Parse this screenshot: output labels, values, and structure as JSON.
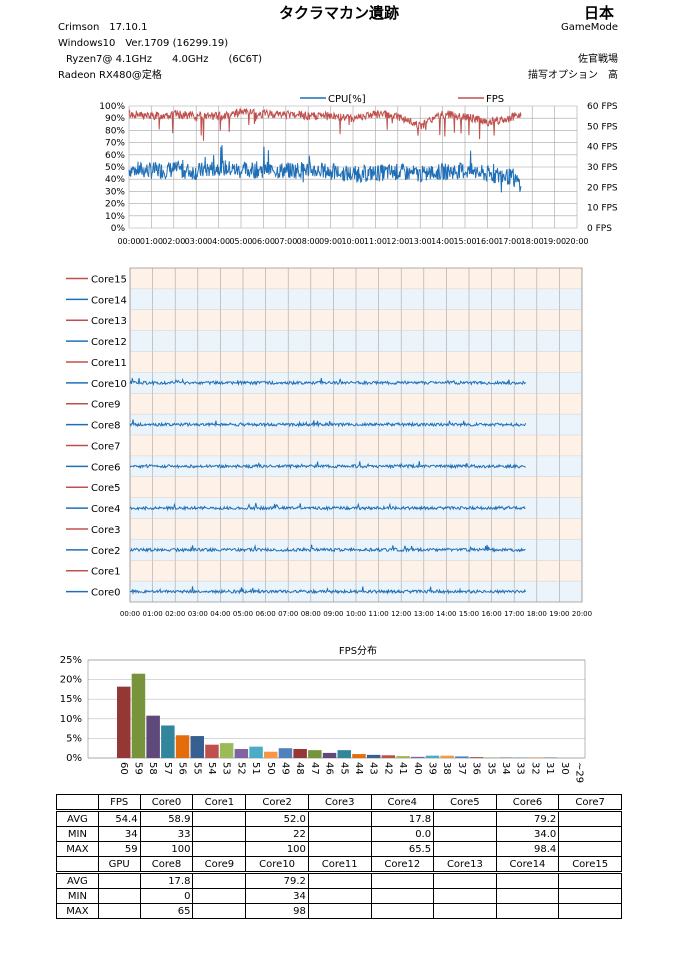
{
  "header": {
    "title": "タクラマカン遺跡",
    "region": "日本",
    "game_mode": "GameMode",
    "driver": "Crimson　17.10.1",
    "os": "Windows10　Ver.1709 (16299.19)",
    "cpu": "Ryzen7@ 4.1GHz　　4.0GHz　　(6C6T)",
    "gpu": "Radeon RX480@定格",
    "server": "佐官戦場",
    "quality": "描写オプション　高"
  },
  "colors": {
    "cpu": "#1f6fb6",
    "fps": "#c0504d",
    "grid": "#a6a6a6",
    "odd_bg": "#fbe5d6",
    "even_bg": "#ddebf7"
  },
  "chart_data": [
    {
      "type": "line",
      "id": "cpu_fps",
      "legend": [
        "CPU[%]",
        "FPS"
      ],
      "x_ticks": [
        "00:00",
        "01:00",
        "02:00",
        "03:00",
        "04:00",
        "05:00",
        "06:00",
        "07:00",
        "08:00",
        "09:00",
        "10:00",
        "11:00",
        "12:00",
        "13:00",
        "14:00",
        "15:00",
        "16:00",
        "17:00",
        "18:00",
        "19:00",
        "20:00"
      ],
      "y_left_ticks": [
        "100%",
        "90%",
        "80%",
        "70%",
        "60%",
        "50%",
        "40%",
        "30%",
        "20%",
        "10%",
        "0%"
      ],
      "y_right_ticks": [
        "60 FPS",
        "50 FPS",
        "40 FPS",
        "30 FPS",
        "20 FPS",
        "10 FPS",
        "0 FPS"
      ],
      "ylim_left": [
        0,
        100
      ],
      "ylim_right": [
        0,
        60
      ],
      "xlim_min": [
        0,
        1200
      ],
      "series": [
        {
          "name": "CPU[%]",
          "axis": "left",
          "x": [
            0,
            60,
            120,
            180,
            240,
            300,
            360,
            420,
            480,
            540,
            600,
            660,
            720,
            780,
            840,
            900,
            960,
            1020,
            1050
          ],
          "values": [
            48,
            47,
            48,
            46,
            50,
            47,
            48,
            47,
            48,
            46,
            44,
            45,
            46,
            44,
            46,
            47,
            44,
            42,
            36
          ]
        },
        {
          "name": "FPS",
          "axis": "right",
          "x": [
            0,
            60,
            120,
            180,
            240,
            300,
            360,
            420,
            480,
            540,
            600,
            660,
            720,
            780,
            840,
            900,
            960,
            1020,
            1050
          ],
          "values": [
            56,
            55,
            56,
            55,
            55,
            57,
            56,
            56,
            55,
            55,
            54,
            56,
            55,
            50,
            56,
            55,
            52,
            54,
            56
          ]
        }
      ],
      "grid": true
    },
    {
      "type": "line",
      "id": "per_core",
      "categories": [
        "Core15",
        "Core14",
        "Core13",
        "Core12",
        "Core11",
        "Core10",
        "Core9",
        "Core8",
        "Core7",
        "Core6",
        "Core5",
        "Core4",
        "Core3",
        "Core2",
        "Core1",
        "Core0"
      ],
      "x_ticks": [
        "00:00",
        "01:00",
        "02:00",
        "03:00",
        "04:00",
        "05:00",
        "06:00",
        "07:00",
        "08:00",
        "09:00",
        "10:00",
        "11:00",
        "12:00",
        "13:00",
        "14:00",
        "15:00",
        "16:00",
        "17:00",
        "18:00",
        "19:00",
        "20:00"
      ],
      "xlim_min": [
        0,
        1200
      ],
      "active_cores": {
        "Core10": 79.2,
        "Core8": 17.8,
        "Core6": 79.2,
        "Core4": 17.8,
        "Core2": 52.0,
        "Core0": 58.9
      },
      "grid": true
    },
    {
      "type": "bar",
      "id": "fps_dist",
      "title": "FPS分布",
      "categories": [
        "60",
        "59",
        "58",
        "57",
        "56",
        "55",
        "54",
        "53",
        "52",
        "51",
        "50",
        "49",
        "48",
        "47",
        "46",
        "45",
        "44",
        "43",
        "42",
        "41",
        "40",
        "39",
        "38",
        "37",
        "36",
        "35",
        "34",
        "33",
        "32",
        "31",
        "30",
        "~29"
      ],
      "values": [
        18.2,
        21.5,
        10.8,
        8.3,
        5.8,
        5.6,
        3.4,
        3.8,
        2.3,
        2.9,
        1.6,
        2.5,
        2.3,
        2.0,
        1.3,
        2.0,
        1.0,
        0.8,
        0.7,
        0.5,
        0.3,
        0.6,
        0.6,
        0.4,
        0.2,
        0.1,
        0.1,
        0.1,
        0.1,
        0.1,
        0,
        0
      ],
      "y_ticks": [
        "25%",
        "20%",
        "15%",
        "10%",
        "5%",
        "0%"
      ],
      "ylim": [
        0,
        25
      ],
      "bar_colors": [
        "#953735",
        "#77933c",
        "#5f497a",
        "#31859c",
        "#e46c0a",
        "#376092",
        "#c0504d",
        "#9bbb59",
        "#8064a2",
        "#4bacc6",
        "#f79646",
        "#4f81bd"
      ]
    }
  ],
  "table": {
    "header1": [
      "",
      "FPS",
      "Core0",
      "Core1",
      "Core2",
      "Core3",
      "Core4",
      "Core5",
      "Core6",
      "Core7"
    ],
    "rows1": [
      [
        "AVG",
        "54.4",
        "58.9",
        "",
        "52.0",
        "",
        "17.8",
        "",
        "79.2",
        ""
      ],
      [
        "MIN",
        "34",
        "33",
        "",
        "22",
        "",
        "0.0",
        "",
        "34.0",
        ""
      ],
      [
        "MAX",
        "59",
        "100",
        "",
        "100",
        "",
        "65.5",
        "",
        "98.4",
        ""
      ]
    ],
    "header2": [
      "",
      "GPU",
      "Core8",
      "Core9",
      "Core10",
      "Core11",
      "Core12",
      "Core13",
      "Core14",
      "Core15"
    ],
    "rows2": [
      [
        "AVG",
        "",
        "17.8",
        "",
        "79.2",
        "",
        "",
        "",
        "",
        ""
      ],
      [
        "MIN",
        "",
        "0",
        "",
        "34",
        "",
        "",
        "",
        "",
        ""
      ],
      [
        "MAX",
        "",
        "65",
        "",
        "98",
        "",
        "",
        "",
        "",
        ""
      ]
    ]
  }
}
